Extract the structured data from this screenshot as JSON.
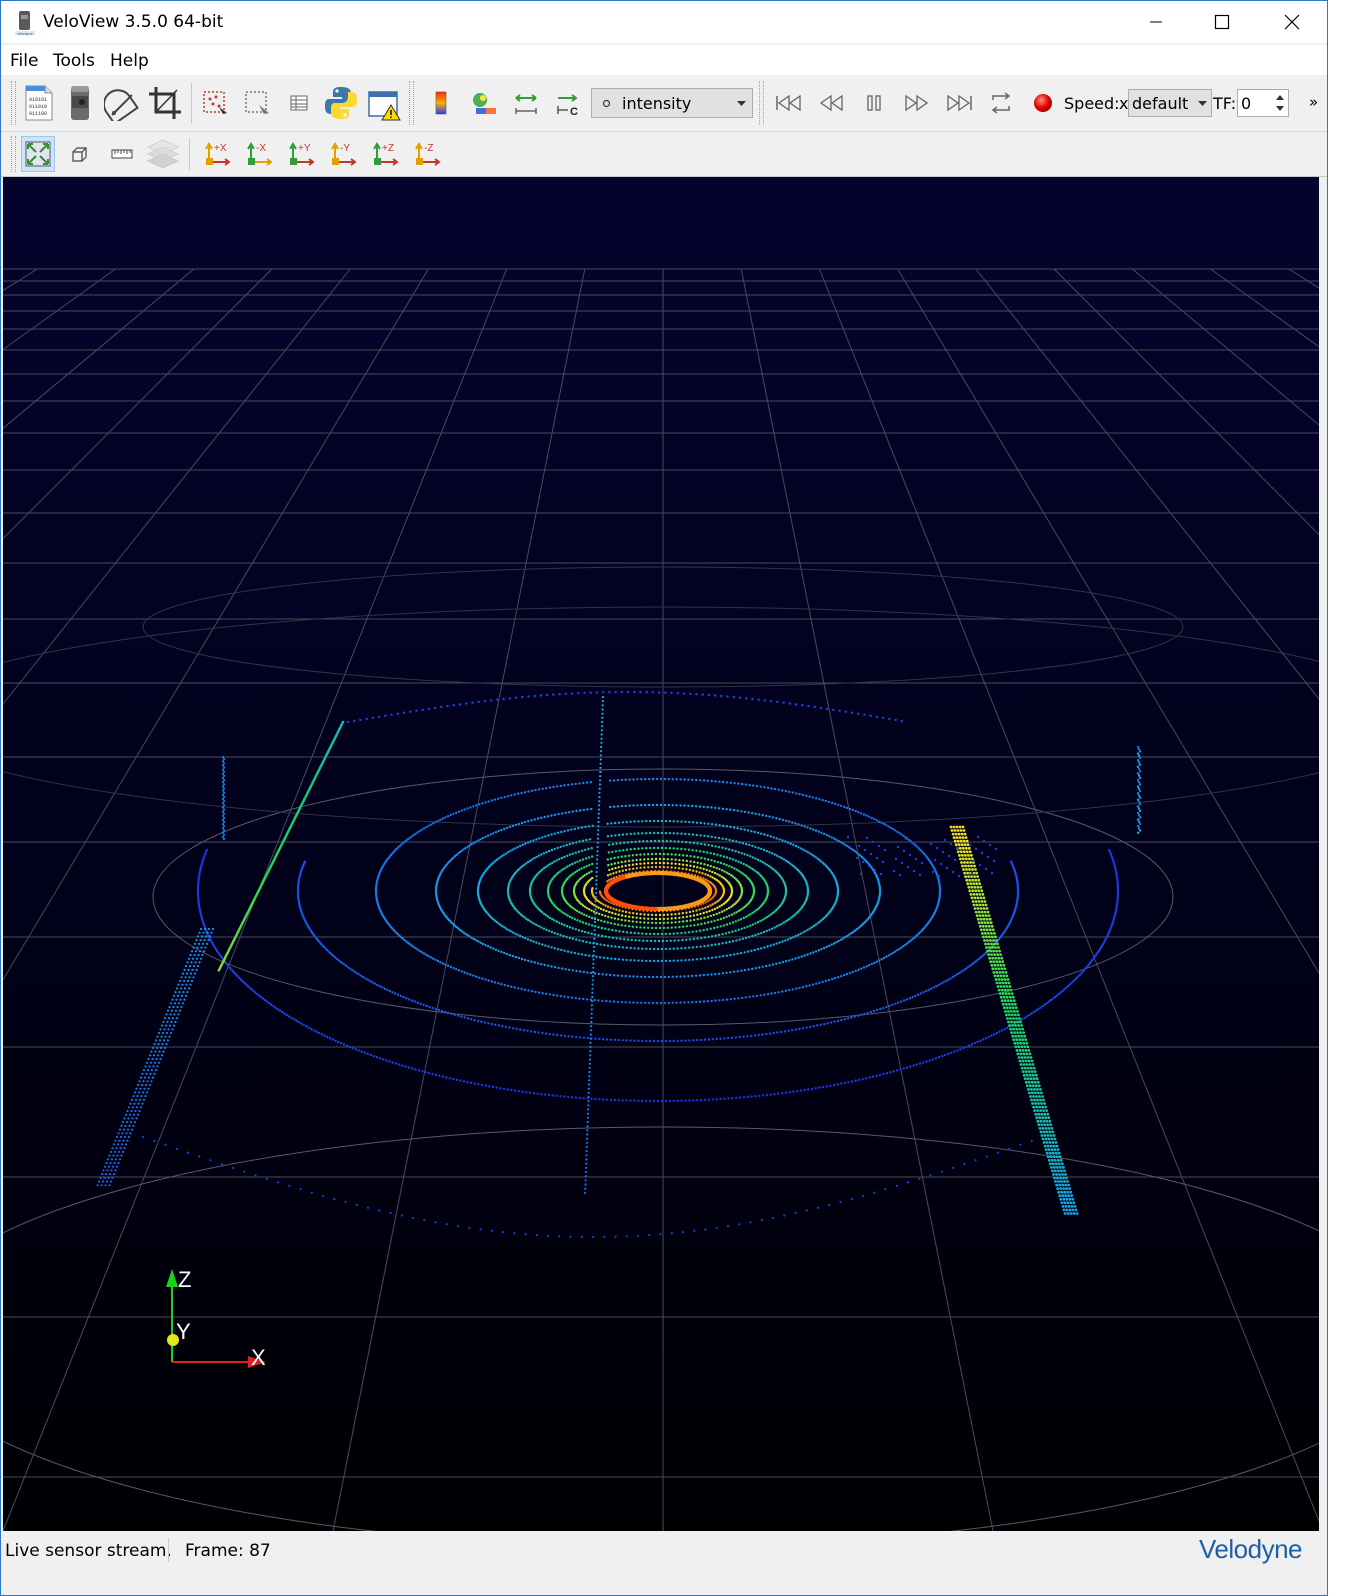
{
  "window": {
    "title": "VeloView 3.5.0 64-bit",
    "accent": "#2b76c7"
  },
  "menu": {
    "items": [
      "File",
      "Tools",
      "Help"
    ]
  },
  "toolbar": {
    "color_by": "intensity",
    "speed_label": "Speed:",
    "speed_prefix": "x",
    "speed_value": "default",
    "tf_label": "TF:",
    "tf_value": "0",
    "overflow": "»",
    "axis_buttons": [
      "+X",
      "-X",
      "+Y",
      "-Y",
      "+Z",
      "-Z"
    ]
  },
  "viewport": {
    "background": "#000000",
    "axes": {
      "x": "X",
      "y": "Y",
      "z": "Z"
    }
  },
  "status": {
    "message": "Live sensor stream.",
    "frame_label": "Frame: 87",
    "brand": "Velodyne",
    "brand_color": "#1f5fa6"
  }
}
